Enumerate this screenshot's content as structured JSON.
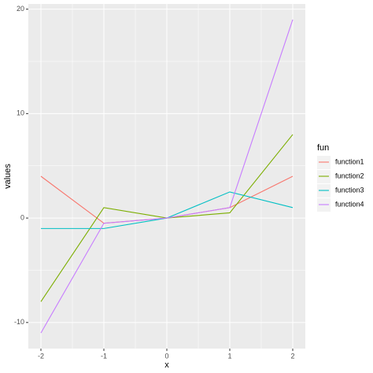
{
  "chart_data": {
    "type": "line",
    "x_label": "x",
    "y_label": "values",
    "legend_title": "fun",
    "x": [
      -2,
      -1,
      0,
      1,
      2
    ],
    "series": [
      {
        "name": "function1",
        "color": "#F8766D",
        "values": [
          4,
          -0.5,
          0,
          1,
          4
        ]
      },
      {
        "name": "function2",
        "color": "#7CAE00",
        "values": [
          -8,
          1,
          0,
          0.5,
          8
        ]
      },
      {
        "name": "function3",
        "color": "#00BFC4",
        "values": [
          -1,
          -1,
          0,
          2.5,
          1
        ]
      },
      {
        "name": "function4",
        "color": "#C77CFF",
        "values": [
          -11,
          -0.5,
          0,
          1,
          19
        ]
      }
    ],
    "xlim": [
      -2.2,
      2.2
    ],
    "xticks": [
      -2,
      -1,
      0,
      1,
      2
    ],
    "ylim": [
      -12.5,
      20.5
    ],
    "yticks": [
      -10,
      0,
      10,
      20
    ],
    "grid": true,
    "legend_position": "right"
  }
}
